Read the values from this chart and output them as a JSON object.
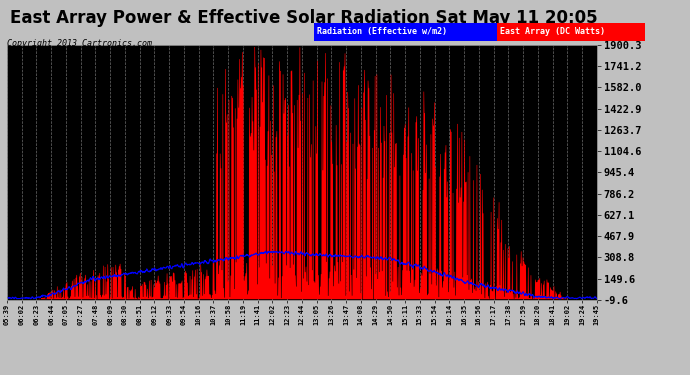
{
  "title": "East Array Power & Effective Solar Radiation Sat May 11 20:05",
  "copyright": "Copyright 2013 Cartronics.com",
  "legend_labels": [
    "Radiation (Effective w/m2)",
    "East Array (DC Watts)"
  ],
  "legend_colors": [
    "blue",
    "red"
  ],
  "yticks": [
    -9.6,
    149.6,
    308.8,
    467.9,
    627.1,
    786.2,
    945.4,
    1104.6,
    1263.7,
    1422.9,
    1582.0,
    1741.2,
    1900.3
  ],
  "ylim": [
    -9.6,
    1900.3
  ],
  "bg_color": "#c0c0c0",
  "plot_bg": "#000000",
  "grid_color": "#808080",
  "title_fontsize": 12,
  "xtick_labels": [
    "05:39",
    "06:02",
    "06:23",
    "06:44",
    "07:05",
    "07:27",
    "07:48",
    "08:09",
    "08:30",
    "08:51",
    "09:12",
    "09:33",
    "09:54",
    "10:16",
    "10:37",
    "10:58",
    "11:19",
    "11:41",
    "12:02",
    "12:23",
    "12:44",
    "13:05",
    "13:26",
    "13:47",
    "14:08",
    "14:29",
    "14:50",
    "15:11",
    "15:33",
    "15:54",
    "16:14",
    "16:35",
    "16:56",
    "17:17",
    "17:38",
    "17:59",
    "18:20",
    "18:41",
    "19:02",
    "19:24",
    "19:45"
  ]
}
